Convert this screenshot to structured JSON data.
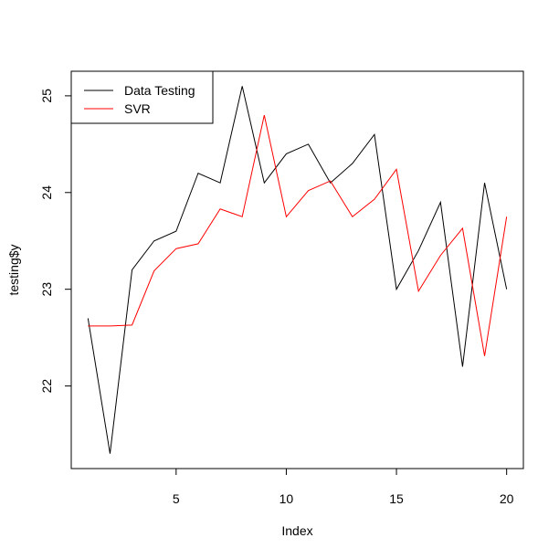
{
  "chart_data": {
    "type": "line",
    "title": "",
    "xlabel": "Index",
    "ylabel": "testing$y",
    "xlim": [
      0.24,
      20.76
    ],
    "ylim": [
      21.146,
      25.254
    ],
    "x_ticks": [
      5,
      10,
      15,
      20
    ],
    "y_ticks": [
      22,
      23,
      24,
      25
    ],
    "grid": false,
    "legend_position": "top-left",
    "x": [
      1,
      2,
      3,
      4,
      5,
      6,
      7,
      8,
      9,
      10,
      11,
      12,
      13,
      14,
      15,
      16,
      17,
      18,
      19,
      20
    ],
    "series": [
      {
        "name": "Data Testing",
        "color": "#000000",
        "values": [
          22.7,
          21.3,
          23.2,
          23.5,
          23.6,
          24.2,
          24.1,
          25.1,
          24.1,
          24.4,
          24.5,
          24.1,
          24.3,
          24.6,
          23.0,
          23.4,
          23.9,
          22.2,
          24.1,
          23.0
        ]
      },
      {
        "name": "SVR",
        "color": "#ff0000",
        "values": [
          22.62,
          22.62,
          22.63,
          23.19,
          23.42,
          23.47,
          23.83,
          23.75,
          24.8,
          23.75,
          24.02,
          24.12,
          23.75,
          23.93,
          24.24,
          22.98,
          23.35,
          23.63,
          22.31,
          23.75
        ]
      }
    ]
  }
}
